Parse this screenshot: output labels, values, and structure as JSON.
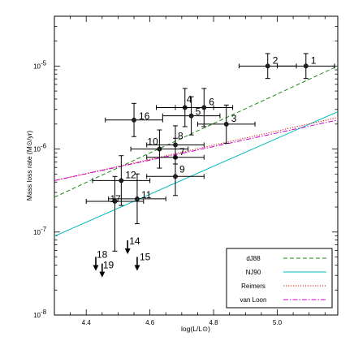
{
  "chart_data": {
    "type": "scatter",
    "xlabel": "log(L/L⊙)",
    "ylabel": "Mass loss rate (M⊙/yr)",
    "xlim": [
      4.3,
      5.19
    ],
    "ylim_log": [
      -8,
      -4.4
    ],
    "x_scale": "linear",
    "y_scale": "log",
    "x_ticks": [
      4.4,
      4.6,
      4.8,
      5.0
    ],
    "x_tick_labels": [
      "4.4",
      "4.6",
      "4.8",
      "5.0"
    ],
    "y_ticks_log": [
      -8,
      -7,
      -6,
      -5
    ],
    "y_tick_labels": [
      {
        "base": "10",
        "exp": "-8"
      },
      {
        "base": "10",
        "exp": "-7"
      },
      {
        "base": "10",
        "exp": "-6"
      },
      {
        "base": "10",
        "exp": "-5"
      }
    ],
    "points": [
      {
        "label": "1",
        "x": 5.09,
        "logy": -5.0,
        "xerr": 0.09,
        "yerr_lo": 0.15,
        "yerr_hi": 0.15
      },
      {
        "label": "2",
        "x": 4.97,
        "logy": -5.0,
        "xerr": 0.09,
        "yerr_lo": 0.15,
        "yerr_hi": 0.15
      },
      {
        "label": "3",
        "x": 4.84,
        "logy": -5.7,
        "xerr": 0.09,
        "yerr_lo": 0.23,
        "yerr_hi": 0.23
      },
      {
        "label": "4",
        "x": 4.71,
        "logy": -5.5,
        "xerr": 0.09,
        "yerr_lo": 0.23,
        "yerr_hi": 0.23
      },
      {
        "label": "5",
        "x": 4.73,
        "logy": -5.6,
        "xerr": 0.09,
        "yerr_lo": 0.23,
        "yerr_hi": 0.23
      },
      {
        "label": "6",
        "x": 4.77,
        "logy": -5.5,
        "xerr": 0.09,
        "yerr_lo": 0.23,
        "yerr_hi": 0.23
      },
      {
        "label": "7",
        "x": 4.68,
        "logy": -6.1,
        "xerr": 0.09,
        "yerr_lo": 0.23,
        "yerr_hi": 0.23
      },
      {
        "label": "8",
        "x": 4.68,
        "logy": -5.95,
        "xerr": 0.09,
        "yerr_lo": 0.23,
        "yerr_hi": 0.23
      },
      {
        "label": "9",
        "x": 4.68,
        "logy": -6.33,
        "xerr": 0.09,
        "yerr_lo": 0.23,
        "yerr_hi": 0.23
      },
      {
        "label": "10",
        "x": 4.63,
        "logy": -6.0,
        "xerr": 0.09,
        "yerr_lo": 0.23,
        "yerr_hi": 0.23
      },
      {
        "label": "11",
        "x": 4.56,
        "logy": -6.6,
        "xerr": 0.09,
        "yerr_lo": 0.3,
        "yerr_hi": 0.3
      },
      {
        "label": "12",
        "x": 4.51,
        "logy": -6.38,
        "xerr": 0.09,
        "yerr_lo": 0.3,
        "yerr_hi": 0.3
      },
      {
        "label": "16",
        "x": 4.55,
        "logy": -5.65,
        "xerr": 0.09,
        "yerr_lo": 0.2,
        "yerr_hi": 0.2
      },
      {
        "label": "17",
        "x": 4.49,
        "logy": -6.63,
        "xerr": 0.09,
        "yerr_lo": 0.6,
        "yerr_hi": 0.3
      }
    ],
    "upper_limits": [
      {
        "label": "14",
        "x": 4.53,
        "logy": -7.1
      },
      {
        "label": "15",
        "x": 4.56,
        "logy": -7.3
      },
      {
        "label": "18",
        "x": 4.43,
        "logy": -7.3
      },
      {
        "label": "19",
        "x": 4.45,
        "logy": -7.38
      }
    ],
    "series": [
      {
        "name": "dJ88",
        "color": "#1a8a1a",
        "dash": "dashed",
        "x": [
          4.3,
          5.19
        ],
        "logy": [
          -6.58,
          -5.0
        ]
      },
      {
        "name": "NJ90",
        "color": "#00bcbc",
        "dash": "solid",
        "x": [
          4.3,
          5.19
        ],
        "logy": [
          -7.05,
          -5.55
        ]
      },
      {
        "name": "Reimers",
        "color": "#dd1111",
        "dash": "dotted",
        "x": [
          4.3,
          5.19
        ],
        "logy": [
          -6.38,
          -5.62
        ]
      },
      {
        "name": "van Loon",
        "color": "#cc00cc",
        "dash": "dashdot",
        "x": [
          4.3,
          5.19
        ],
        "logy": [
          -6.38,
          -5.65
        ]
      }
    ],
    "legend_position": "bottom-right"
  }
}
